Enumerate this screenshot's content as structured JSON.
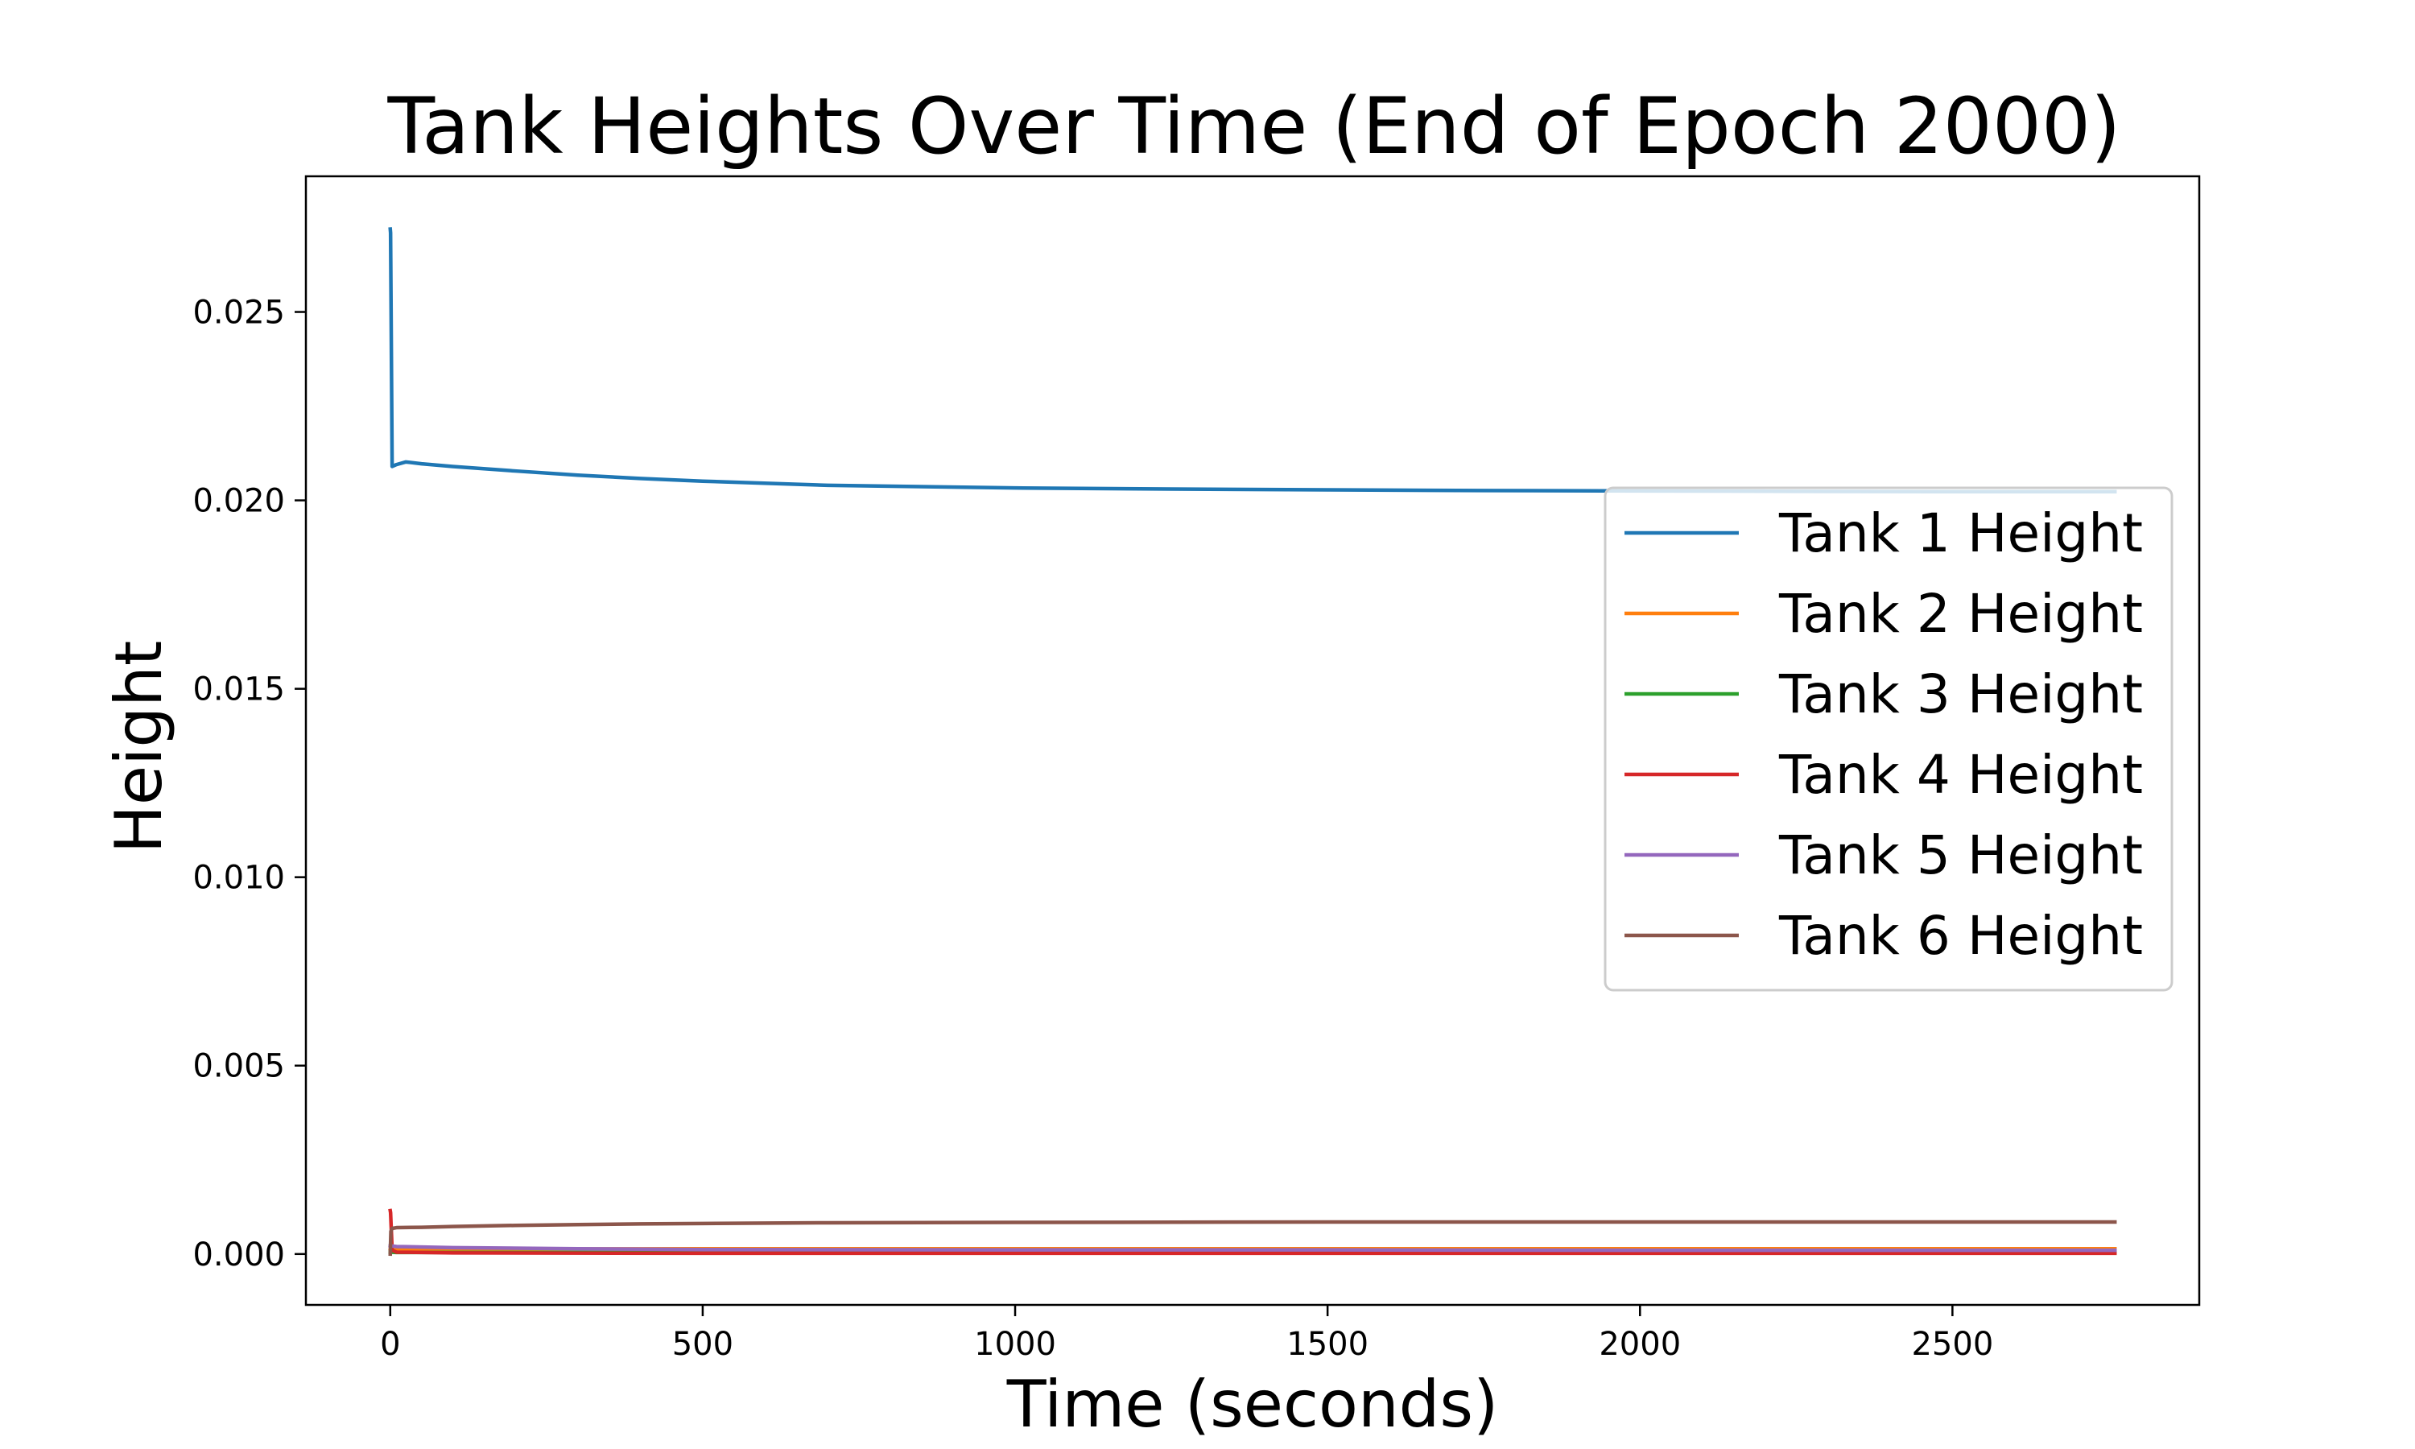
{
  "chart_data": {
    "type": "line",
    "title": "Tank Heights Over Time (End of Epoch 2000)",
    "xlabel": "Time (seconds)",
    "ylabel": "Height",
    "xlim": [
      -135,
      2895
    ],
    "ylim": [
      -0.00135,
      0.0286
    ],
    "xticks": [
      0,
      500,
      1000,
      1500,
      2000,
      2500
    ],
    "yticks": [
      0.0,
      0.005,
      0.01,
      0.015,
      0.02,
      0.025
    ],
    "ytick_labels": [
      "0.000",
      "0.005",
      "0.010",
      "0.015",
      "0.020",
      "0.025"
    ],
    "grid": false,
    "legend_position": "center-right",
    "series": [
      {
        "name": "Tank 1 Height",
        "color": "#1f77b4",
        "x": [
          0,
          0.5,
          3,
          10,
          25,
          50,
          100,
          200,
          300,
          400,
          500,
          700,
          1000,
          1250,
          1500,
          1750,
          2000,
          2250,
          2500,
          2760
        ],
        "y": [
          0.0272,
          0.0271,
          0.0209,
          0.02095,
          0.02102,
          0.02097,
          0.0209,
          0.02078,
          0.02067,
          0.02058,
          0.02051,
          0.0204,
          0.02033,
          0.0203,
          0.02028,
          0.02026,
          0.02025,
          0.02024,
          0.02023,
          0.02023
        ]
      },
      {
        "name": "Tank 2 Height",
        "color": "#ff7f0e",
        "x": [
          0,
          10,
          100,
          500,
          1000,
          1500,
          2000,
          2500,
          2760
        ],
        "y": [
          0.0001,
          0.00012,
          0.00013,
          0.00014,
          0.00014,
          0.00014,
          0.00014,
          0.00014,
          0.00014
        ]
      },
      {
        "name": "Tank 3 Height",
        "color": "#2ca02c",
        "x": [
          0,
          10,
          100,
          500,
          1000,
          1500,
          2000,
          2500,
          2760
        ],
        "y": [
          5e-05,
          4e-05,
          4e-05,
          4e-05,
          4e-05,
          4e-05,
          4e-05,
          4e-05,
          4e-05
        ]
      },
      {
        "name": "Tank 4 Height",
        "color": "#d62728",
        "x": [
          0,
          0.5,
          3,
          10,
          100,
          500,
          1000,
          1500,
          2000,
          2500,
          2760
        ],
        "y": [
          0.00115,
          0.0011,
          0.0001,
          5e-05,
          3e-05,
          2e-05,
          2e-05,
          2e-05,
          2e-05,
          2e-05,
          2e-05
        ]
      },
      {
        "name": "Tank 5 Height",
        "color": "#9467bd",
        "x": [
          0,
          10,
          100,
          300,
          500,
          1000,
          1500,
          2000,
          2500,
          2760
        ],
        "y": [
          0.00022,
          0.0002,
          0.00017,
          0.00014,
          0.00012,
          0.00011,
          0.00011,
          0.0001,
          0.0001,
          0.0001
        ]
      },
      {
        "name": "Tank 6 Height",
        "color": "#8c564b",
        "x": [
          0,
          1,
          3,
          10,
          50,
          100,
          200,
          300,
          400,
          500,
          700,
          1000,
          1500,
          2000,
          2500,
          2760
        ],
        "y": [
          0.0,
          0.0006,
          0.00068,
          0.0007,
          0.00071,
          0.00073,
          0.00076,
          0.00078,
          0.0008,
          0.00081,
          0.00083,
          0.00084,
          0.00085,
          0.00085,
          0.00085,
          0.00085
        ]
      }
    ]
  }
}
